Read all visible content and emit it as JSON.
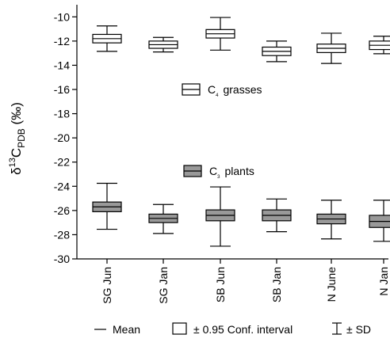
{
  "chart_data": {
    "type": "box",
    "title": "",
    "xlabel": "",
    "ylabel_parts": [
      "δ",
      "13",
      "C",
      "PDB",
      " (‰)"
    ],
    "ylim": [
      -30,
      -9
    ],
    "yticks": [
      -10,
      -12,
      -14,
      -16,
      -18,
      -20,
      -22,
      -24,
      -26,
      -28,
      -30
    ],
    "categories": [
      "SG Jun",
      "SG Jan",
      "SB Jun",
      "SB Jan",
      "N June",
      "N Jan"
    ],
    "series": [
      {
        "name": "C4 grasses",
        "legend_text": "C",
        "legend_sub": "4",
        "legend_suffix": "grasses",
        "color": "#ffffff",
        "boxes": [
          {
            "mean": -11.8,
            "ci_low": -12.15,
            "ci_high": -11.45,
            "sd_low": -12.85,
            "sd_high": -10.75
          },
          {
            "mean": -12.3,
            "ci_low": -12.6,
            "ci_high": -12.0,
            "sd_low": -12.9,
            "sd_high": -11.7
          },
          {
            "mean": -11.4,
            "ci_low": -11.75,
            "ci_high": -11.05,
            "sd_low": -12.75,
            "sd_high": -10.05
          },
          {
            "mean": -12.85,
            "ci_low": -13.2,
            "ci_high": -12.5,
            "sd_low": -13.7,
            "sd_high": -12.0
          },
          {
            "mean": -12.6,
            "ci_low": -12.95,
            "ci_high": -12.25,
            "sd_low": -13.85,
            "sd_high": -11.35
          },
          {
            "mean": -12.35,
            "ci_low": -12.7,
            "ci_high": -12.0,
            "sd_low": -13.05,
            "sd_high": -11.6
          }
        ]
      },
      {
        "name": "C3 plants",
        "legend_text": "C",
        "legend_sub": "3",
        "legend_suffix": "plants",
        "color": "#999999",
        "boxes": [
          {
            "mean": -25.7,
            "ci_low": -26.1,
            "ci_high": -25.3,
            "sd_low": -27.55,
            "sd_high": -23.75
          },
          {
            "mean": -26.65,
            "ci_low": -27.0,
            "ci_high": -26.3,
            "sd_low": -27.9,
            "sd_high": -25.5
          },
          {
            "mean": -26.4,
            "ci_low": -26.85,
            "ci_high": -25.95,
            "sd_low": -28.95,
            "sd_high": -24.05
          },
          {
            "mean": -26.4,
            "ci_low": -26.85,
            "ci_high": -25.95,
            "sd_low": -27.75,
            "sd_high": -25.05
          },
          {
            "mean": -26.7,
            "ci_low": -27.1,
            "ci_high": -26.3,
            "sd_low": -28.35,
            "sd_high": -25.15
          },
          {
            "mean": -26.9,
            "ci_low": -27.4,
            "ci_high": -26.4,
            "sd_low": -28.55,
            "sd_high": -25.15
          }
        ]
      }
    ],
    "key": {
      "mean_label": "Mean",
      "ci_label": "± 0.95 Conf. interval",
      "sd_label": "± SD"
    }
  }
}
